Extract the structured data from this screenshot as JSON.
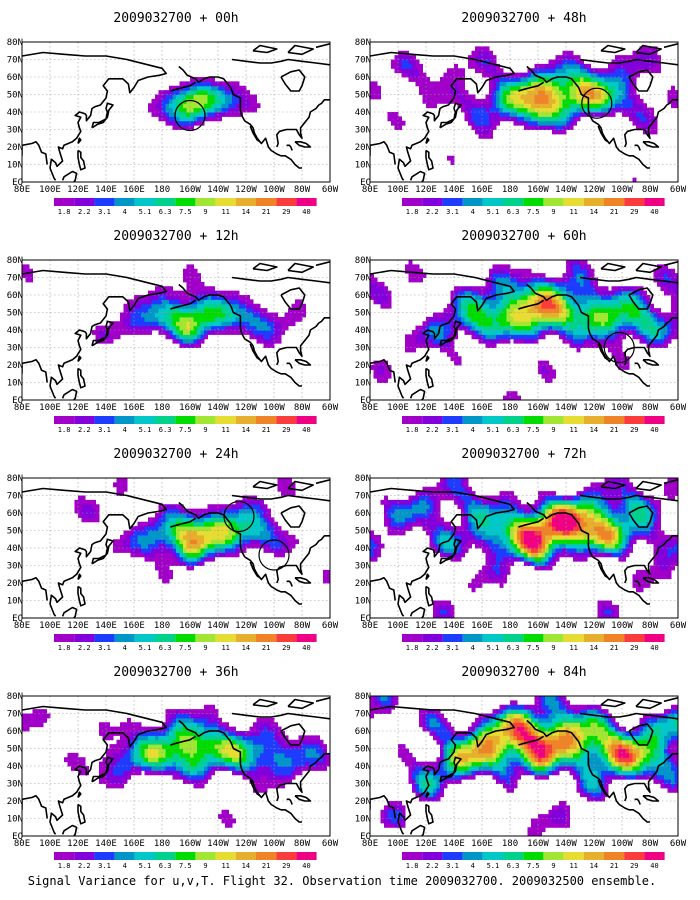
{
  "chart_data": {
    "type": "heatmap",
    "caption": "Signal Variance for u,v,T. Flight 32. Observation time 2009032700. 2009032500 ensemble.",
    "lon_ticks": [
      "80E",
      "100E",
      "120E",
      "140E",
      "160E",
      "180",
      "160W",
      "140W",
      "120W",
      "100W",
      "80W",
      "60W"
    ],
    "lat_ticks": [
      "EQ",
      "10N",
      "20N",
      "30N",
      "40N",
      "50N",
      "60N",
      "70N",
      "80N"
    ],
    "lon_range": [
      80,
      300
    ],
    "lat_range": [
      0,
      80
    ],
    "colorbar": {
      "labels": [
        "1.8",
        "2.2",
        "3.1",
        "4",
        "5.1",
        "6.3",
        "7.5",
        "9",
        "11",
        "14",
        "21",
        "29",
        "40"
      ],
      "colors": [
        "#a000c8",
        "#8200dc",
        "#1e3cff",
        "#0096c8",
        "#00c8c8",
        "#00d28c",
        "#00dc00",
        "#a0e632",
        "#e6dc32",
        "#e6af2d",
        "#f08228",
        "#fa3c3c",
        "#f00082"
      ]
    },
    "panels": [
      {
        "title": "2009032700 + 00h",
        "lead_hours": 0,
        "intensity": 0.25,
        "circles": [
          [
            200,
            38
          ]
        ]
      },
      {
        "title": "2009032700 + 12h",
        "lead_hours": 12,
        "intensity": 0.45,
        "circles": []
      },
      {
        "title": "2009032700 + 24h",
        "lead_hours": 24,
        "intensity": 0.55,
        "circles": [
          [
            235,
            58
          ],
          [
            260,
            36
          ]
        ]
      },
      {
        "title": "2009032700 + 36h",
        "lead_hours": 36,
        "intensity": 0.65,
        "circles": []
      },
      {
        "title": "2009032700 + 48h",
        "lead_hours": 48,
        "intensity": 0.7,
        "circles": [
          [
            242,
            45
          ]
        ]
      },
      {
        "title": "2009032700 + 60h",
        "lead_hours": 60,
        "intensity": 0.8,
        "circles": [
          [
            258,
            30
          ]
        ]
      },
      {
        "title": "2009032700 + 72h",
        "lead_hours": 72,
        "intensity": 0.9,
        "circles": []
      },
      {
        "title": "2009032700 + 84h",
        "lead_hours": 84,
        "intensity": 1.0,
        "circles": []
      }
    ]
  }
}
